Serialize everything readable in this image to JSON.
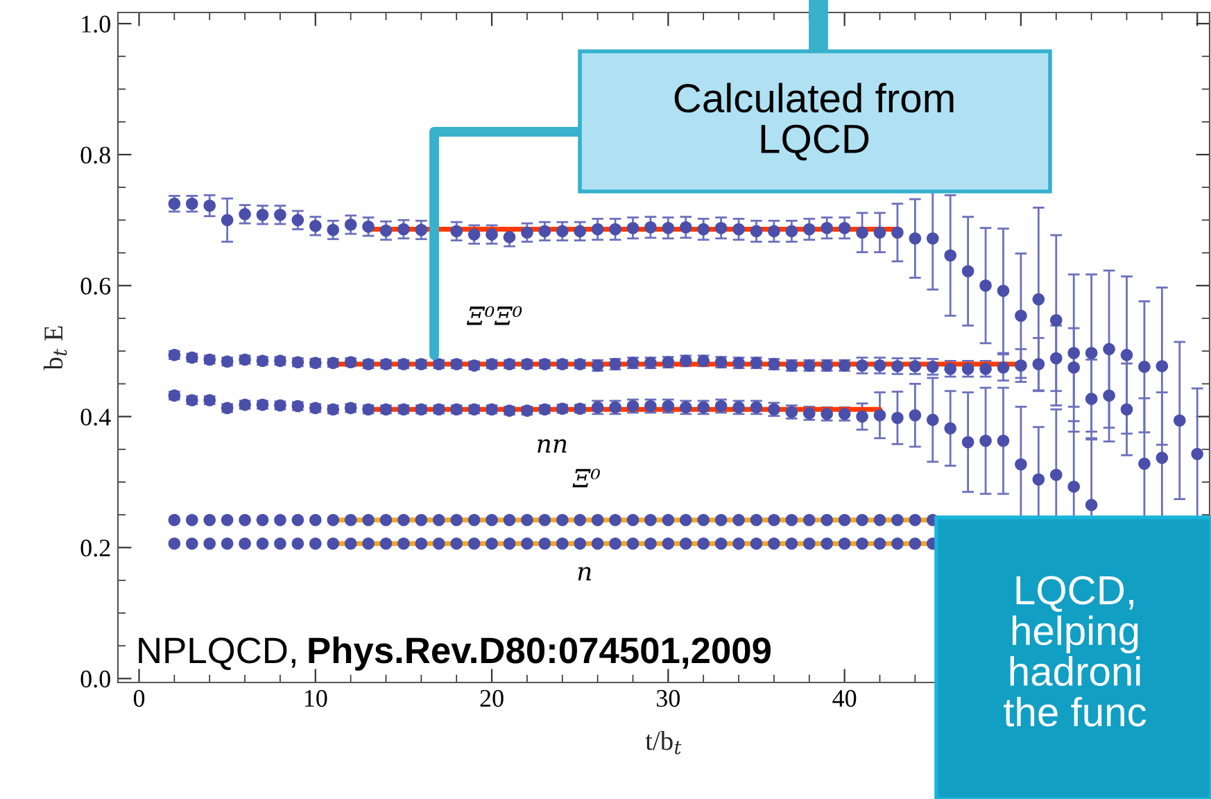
{
  "chart_data": {
    "type": "scatter",
    "xlabel": "t/b$_{t}$",
    "ylabel": "b$_{t}$ E",
    "x": [
      2,
      3,
      4,
      5,
      6,
      7,
      8,
      9,
      10,
      11,
      12,
      13,
      14,
      15,
      16,
      17,
      18,
      19,
      20,
      21,
      22,
      23,
      24,
      25,
      26,
      27,
      28,
      29,
      30,
      31,
      32,
      33,
      34,
      35,
      36,
      37,
      38,
      39,
      40,
      41,
      42,
      43,
      44,
      45,
      46,
      47,
      48,
      49,
      50,
      51,
      52,
      53,
      54,
      55,
      56,
      57,
      58,
      59,
      60
    ],
    "xlim": [
      -1.2,
      60.7
    ],
    "xticks": [
      0,
      10,
      20,
      30,
      40,
      {
        "value": 50,
        "label": null
      },
      {
        "value": 60,
        "label": null
      }
    ],
    "ylim": [
      -0.006,
      1.017
    ],
    "yticks": [
      {
        "value": 0,
        "label": "0.0"
      },
      0.2,
      0.4,
      0.6,
      0.8,
      {
        "value": 1,
        "label": "1.0"
      }
    ],
    "grid": false,
    "legend": false,
    "marker": "circle",
    "series": [
      {
        "color": "#4a4fab",
        "values": [
          0.725,
          0.725,
          0.722,
          0.7,
          0.709,
          0.708,
          0.708,
          0.7,
          0.691,
          0.685,
          0.693,
          0.69,
          0.684,
          0.686,
          0.685,
          null,
          0.683,
          0.678,
          0.678,
          0.674,
          0.681,
          0.683,
          0.683,
          0.683,
          0.686,
          0.686,
          0.688,
          0.689,
          0.688,
          0.689,
          0.686,
          0.688,
          0.686,
          0.683,
          0.683,
          0.683,
          0.686,
          0.688,
          0.688,
          0.681,
          0.681,
          0.681,
          0.672,
          0.672,
          0.646,
          0.622,
          0.6,
          0.592,
          0.554,
          0.579,
          0.547,
          0.497,
          0.497,
          0.503,
          0.494,
          0.476,
          0.477,
          0.394,
          0.343
        ],
        "errors": [
          0.012,
          0.012,
          0.016,
          0.033,
          0.014,
          0.014,
          0.014,
          0.014,
          0.014,
          0.014,
          0.014,
          0.014,
          0.014,
          0.014,
          0.014,
          null,
          0.014,
          0.014,
          0.014,
          0.014,
          0.014,
          0.014,
          0.014,
          0.014,
          0.016,
          0.016,
          0.016,
          0.016,
          0.016,
          0.016,
          0.016,
          0.016,
          0.016,
          0.016,
          0.016,
          0.016,
          0.016,
          0.016,
          0.016,
          0.03,
          0.03,
          0.044,
          0.06,
          0.078,
          0.092,
          0.083,
          0.088,
          0.095,
          0.095,
          0.14,
          0.13,
          0.12,
          0.12,
          0.12,
          0.12,
          0.1,
          0.12,
          0.12,
          0.1
        ]
      },
      {
        "name": "Ξ⁰Ξ⁰",
        "color": "#4a4fab",
        "values": [
          0.494,
          0.49,
          0.487,
          0.484,
          0.487,
          0.485,
          0.485,
          0.483,
          0.482,
          0.482,
          0.483,
          0.48,
          0.48,
          0.48,
          0.48,
          0.48,
          0.48,
          0.478,
          0.48,
          0.48,
          0.48,
          0.48,
          0.48,
          0.48,
          0.478,
          0.48,
          0.482,
          0.482,
          0.483,
          0.485,
          0.485,
          0.483,
          0.482,
          0.482,
          0.48,
          0.478,
          0.478,
          0.478,
          0.478,
          0.478,
          0.478,
          0.477,
          0.477,
          0.476,
          0.473,
          0.473,
          0.473,
          0.475,
          0.478,
          0.48,
          0.489,
          0.475,
          0.427,
          0.432,
          0.411,
          0.328,
          0.337,
          null,
          null
        ],
        "errors": [
          0.006,
          0.006,
          0.006,
          0.006,
          0.006,
          0.006,
          0.006,
          0.006,
          0.006,
          0.006,
          0.006,
          0.006,
          0.006,
          0.006,
          0.006,
          0.006,
          0.006,
          0.006,
          0.006,
          0.006,
          0.006,
          0.006,
          0.006,
          0.006,
          0.008,
          0.008,
          0.008,
          0.008,
          0.008,
          0.008,
          0.008,
          0.008,
          0.008,
          0.008,
          0.008,
          0.008,
          0.008,
          0.008,
          0.008,
          0.012,
          0.012,
          0.012,
          0.012,
          0.012,
          0.012,
          0.012,
          0.012,
          0.02,
          0.025,
          0.04,
          0.05,
          0.06,
          0.06,
          0.07,
          0.07,
          0.1,
          0.1,
          null,
          null
        ]
      },
      {
        "name": "nn",
        "color": "#4a4fab",
        "values": [
          0.432,
          0.425,
          0.425,
          0.413,
          0.418,
          0.418,
          0.417,
          0.416,
          0.413,
          0.411,
          0.413,
          0.411,
          0.411,
          0.411,
          0.411,
          0.411,
          0.411,
          0.411,
          0.411,
          0.409,
          0.409,
          0.411,
          0.412,
          0.412,
          0.414,
          0.414,
          0.416,
          0.416,
          0.416,
          0.414,
          0.414,
          0.416,
          0.414,
          0.414,
          0.411,
          0.407,
          0.405,
          0.404,
          0.404,
          0.4,
          0.402,
          0.398,
          0.402,
          0.395,
          0.382,
          0.361,
          0.363,
          0.363,
          0.327,
          0.304,
          0.311,
          0.293,
          0.265,
          null,
          null,
          null,
          null,
          null,
          null
        ],
        "errors": [
          0.006,
          0.006,
          0.006,
          0.006,
          0.006,
          0.006,
          0.006,
          0.006,
          0.006,
          0.006,
          0.006,
          0.006,
          0.006,
          0.006,
          0.006,
          0.006,
          0.006,
          0.006,
          0.006,
          0.006,
          0.006,
          0.006,
          0.006,
          0.006,
          0.01,
          0.01,
          0.01,
          0.01,
          0.01,
          0.01,
          0.01,
          0.01,
          0.01,
          0.01,
          0.01,
          0.01,
          0.01,
          0.01,
          0.01,
          0.02,
          0.035,
          0.04,
          0.048,
          0.064,
          0.057,
          0.076,
          0.081,
          0.081,
          0.088,
          0.08,
          0.1,
          0.1,
          0.1,
          null,
          null,
          null,
          null,
          null,
          null
        ]
      },
      {
        "name": "Ξ⁰",
        "color": "#4a4fab",
        "values": [
          0.242,
          0.242,
          0.242,
          0.242,
          0.242,
          0.242,
          0.242,
          0.242,
          0.242,
          0.242,
          0.242,
          0.242,
          0.242,
          0.242,
          0.242,
          0.242,
          0.242,
          0.242,
          0.242,
          0.242,
          0.242,
          0.242,
          0.242,
          0.242,
          0.242,
          0.242,
          0.242,
          0.242,
          0.242,
          0.242,
          0.242,
          0.242,
          0.242,
          0.242,
          0.242,
          0.242,
          0.242,
          0.242,
          0.242,
          0.242,
          0.242,
          0.242,
          0.242,
          0.242,
          null,
          null,
          null,
          null,
          null,
          null,
          null,
          null,
          null,
          null,
          null,
          null,
          null,
          null,
          null
        ]
      },
      {
        "name": "n",
        "color": "#4a4fab",
        "values": [
          0.206,
          0.206,
          0.206,
          0.206,
          0.206,
          0.206,
          0.206,
          0.206,
          0.206,
          0.206,
          0.206,
          0.206,
          0.206,
          0.206,
          0.206,
          0.206,
          0.206,
          0.206,
          0.206,
          0.206,
          0.206,
          0.206,
          0.206,
          0.206,
          0.206,
          0.206,
          0.206,
          0.206,
          0.206,
          0.206,
          0.206,
          0.206,
          0.206,
          0.206,
          0.206,
          0.206,
          0.206,
          0.206,
          0.206,
          0.206,
          0.206,
          0.206,
          0.206,
          0.206,
          null,
          null,
          null,
          null,
          null,
          null,
          null,
          null,
          null,
          null,
          null,
          null,
          null,
          null,
          null
        ]
      },
      {
        "type": "line",
        "marker": "none",
        "x": [
          13,
          43
        ],
        "values": [
          0.686,
          0.686
        ],
        "color": "#ff3a00"
      },
      {
        "type": "line",
        "marker": "none",
        "x": [
          11,
          50
        ],
        "values": [
          0.48,
          0.48
        ],
        "color": "#ff3a00"
      },
      {
        "type": "line",
        "marker": "none",
        "x": [
          13,
          42
        ],
        "values": [
          0.411,
          0.411
        ],
        "color": "#ff3a00"
      },
      {
        "type": "line",
        "marker": "none",
        "x": [
          11,
          45
        ],
        "values": [
          0.242,
          0.242
        ],
        "color": "#f5a623"
      },
      {
        "type": "line",
        "marker": "none",
        "x": [
          11,
          45
        ],
        "values": [
          0.206,
          0.206
        ],
        "color": "#f5a623"
      }
    ],
    "annotations": [
      "Calculated from\nLQCD",
      "NPLQCD,",
      "Phys.Rev.D80:074501,2009",
      "LQCD,\nhelping\nhadroni\nthe func"
    ]
  }
}
